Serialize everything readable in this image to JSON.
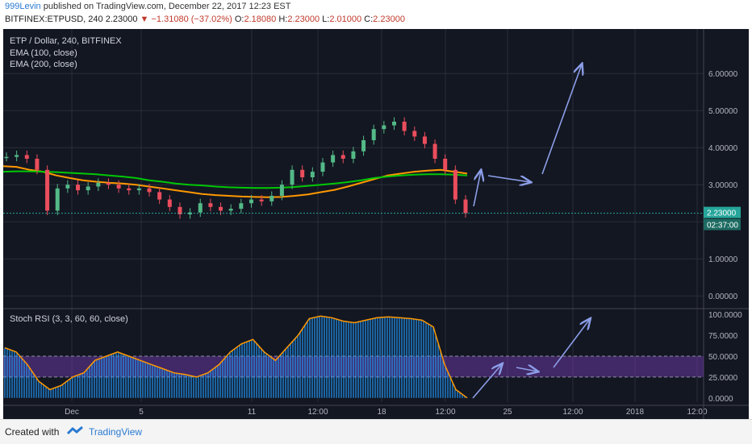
{
  "header": {
    "user": "999Levin",
    "published": "published on TradingView.com, December 22, 2017 12:23 EST",
    "symbol": "BITFINEX:ETPUSD, 240",
    "last": "2.23000",
    "change": "−1.31080 (−37.02%)",
    "o_label": "O:",
    "o": "2.18080",
    "h_label": "H:",
    "h": "2.23000",
    "l_label": "L:",
    "l": "2.01000",
    "c_label": "C:",
    "c": "2.23000"
  },
  "footer": {
    "created": "Created with",
    "brand": "TradingView"
  },
  "colors": {
    "bg": "#131722",
    "up": "#53b987",
    "down": "#eb4d5c",
    "ema100": "#ff9800",
    "ema200": "#00c805",
    "rsi": "#2196f3",
    "k": "#ff9800",
    "band": "#7b3fbb",
    "arrows": "#8c9ee8"
  },
  "chart_data": [
    {
      "type": "line",
      "title": "ETP / Dollar, 240, BITFINEX",
      "legend": [
        "EMA (100, close)",
        "EMA (200, close)"
      ],
      "x_ticks": [
        "Dec",
        "5",
        "11",
        "12:00",
        "18",
        "12:00",
        "25",
        "12:00",
        "2018",
        "12:00"
      ],
      "y_ticks": [
        "6.00000",
        "5.00000",
        "4.00000",
        "3.00000",
        "2.00000",
        "1.00000",
        "0.00000"
      ],
      "ylim": [
        -0.3,
        7.2
      ],
      "price_label": "2.23000",
      "countdown_label": "02:37:00",
      "price": [
        3.75,
        3.8,
        3.7,
        3.4,
        2.3,
        2.9,
        3.0,
        2.85,
        2.95,
        3.05,
        3.0,
        2.9,
        2.85,
        2.9,
        2.8,
        2.6,
        2.4,
        2.2,
        2.25,
        2.5,
        2.4,
        2.3,
        2.35,
        2.5,
        2.6,
        2.55,
        2.7,
        3.0,
        3.4,
        3.2,
        3.35,
        3.6,
        3.8,
        3.7,
        3.9,
        4.2,
        4.5,
        4.6,
        4.7,
        4.45,
        4.3,
        4.1,
        3.7,
        3.4,
        2.6,
        2.23
      ],
      "series": [
        {
          "name": "EMA (100, close)",
          "values": [
            3.5,
            3.48,
            3.4,
            3.35,
            3.25,
            3.18,
            3.12,
            3.08,
            3.05,
            3.03,
            3.0,
            2.95,
            2.9,
            2.85,
            2.8,
            2.75,
            2.72,
            2.7,
            2.68,
            2.67,
            2.66,
            2.67,
            2.7,
            2.74,
            2.8,
            2.86,
            2.95,
            3.05,
            3.15,
            3.25,
            3.3,
            3.35,
            3.38,
            3.4,
            3.35,
            3.3
          ]
        },
        {
          "name": "EMA (200, close)",
          "values": [
            3.35,
            3.36,
            3.36,
            3.35,
            3.34,
            3.32,
            3.3,
            3.28,
            3.25,
            3.22,
            3.18,
            3.12,
            3.08,
            3.03,
            3.0,
            2.98,
            2.95,
            2.93,
            2.92,
            2.91,
            2.91,
            2.92,
            2.94,
            2.97,
            3.0,
            3.03,
            3.07,
            3.12,
            3.18,
            3.22,
            3.25,
            3.27,
            3.28,
            3.28,
            3.27,
            3.25
          ]
        }
      ],
      "annotations": "hand-drawn arrows projecting price toward 6.00000"
    },
    {
      "type": "line",
      "title": "Stoch RSI (3, 3, 60, 60, close)",
      "y_ticks": [
        "100.0000",
        "75.0000",
        "50.0000",
        "25.0000",
        "0.0000"
      ],
      "ylim": [
        -5,
        105
      ],
      "band": [
        25,
        50
      ],
      "values": [
        60,
        55,
        40,
        20,
        10,
        15,
        25,
        30,
        45,
        50,
        55,
        50,
        45,
        40,
        35,
        30,
        28,
        25,
        30,
        40,
        55,
        65,
        70,
        55,
        45,
        60,
        75,
        95,
        98,
        96,
        92,
        90,
        93,
        96,
        97,
        96,
        95,
        93,
        85,
        40,
        10,
        0
      ]
    }
  ]
}
